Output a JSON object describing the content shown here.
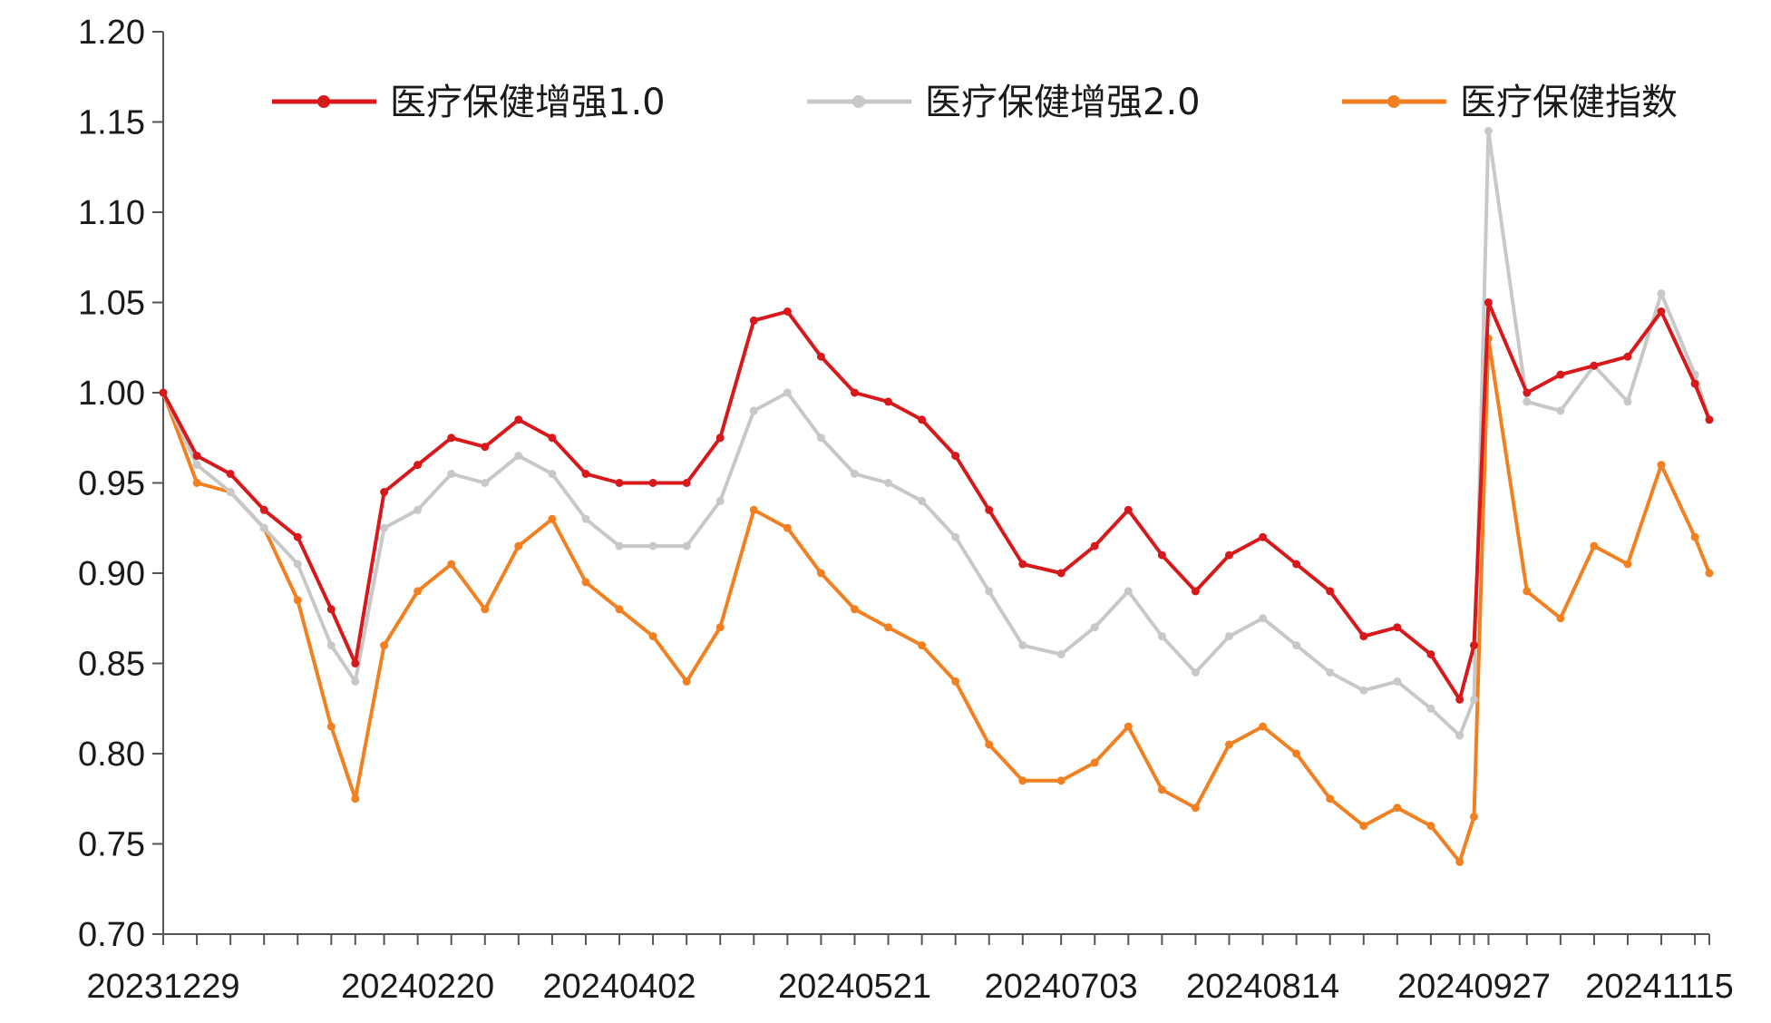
{
  "chart_data": {
    "type": "line",
    "title": "",
    "xlabel": "",
    "ylabel": "",
    "ylim": [
      0.7,
      1.2
    ],
    "y_ticks": [
      "1.20",
      "1.15",
      "1.10",
      "1.05",
      "1.00",
      "0.95",
      "0.90",
      "0.85",
      "0.80",
      "0.75",
      "0.70"
    ],
    "x_tick_labels": [
      "20231229",
      "20240220",
      "20240402",
      "20240521",
      "20240703",
      "20240814",
      "20240927",
      "20241115"
    ],
    "grid": false,
    "legend_position": "top",
    "x": [
      "20231229",
      "20240105",
      "20240112",
      "20240119",
      "20240126",
      "20240202",
      "20240207",
      "20240213",
      "20240220",
      "20240227",
      "20240305",
      "20240312",
      "20240319",
      "20240326",
      "20240402",
      "20240409",
      "20240416",
      "20240423",
      "20240430",
      "20240507",
      "20240514",
      "20240521",
      "20240528",
      "20240604",
      "20240611",
      "20240618",
      "20240625",
      "20240703",
      "20240710",
      "20240717",
      "20240724",
      "20240731",
      "20240807",
      "20240814",
      "20240821",
      "20240828",
      "20240904",
      "20240911",
      "20240918",
      "20240924",
      "20240927",
      "20240930",
      "20241008",
      "20241015",
      "20241022",
      "20241029",
      "20241105",
      "20241112",
      "20241115"
    ],
    "series": [
      {
        "name": "医疗保健增强1.0",
        "color": "#d7191c",
        "values": [
          1.0,
          0.965,
          0.955,
          0.935,
          0.92,
          0.88,
          0.85,
          0.945,
          0.96,
          0.975,
          0.97,
          0.985,
          0.975,
          0.955,
          0.95,
          0.95,
          0.95,
          0.975,
          1.04,
          1.045,
          1.02,
          1.0,
          0.995,
          0.985,
          0.965,
          0.935,
          0.905,
          0.9,
          0.915,
          0.935,
          0.91,
          0.89,
          0.91,
          0.92,
          0.905,
          0.89,
          0.865,
          0.87,
          0.855,
          0.83,
          0.86,
          1.05,
          1.0,
          1.01,
          1.015,
          1.02,
          1.045,
          1.005,
          0.985
        ]
      },
      {
        "name": "医疗保健增强2.0",
        "color": "#c8c8c8",
        "values": [
          1.0,
          0.96,
          0.945,
          0.925,
          0.905,
          0.86,
          0.84,
          0.925,
          0.935,
          0.955,
          0.95,
          0.965,
          0.955,
          0.93,
          0.915,
          0.915,
          0.915,
          0.94,
          0.99,
          1.0,
          0.975,
          0.955,
          0.95,
          0.94,
          0.92,
          0.89,
          0.86,
          0.855,
          0.87,
          0.89,
          0.865,
          0.845,
          0.865,
          0.875,
          0.86,
          0.845,
          0.835,
          0.84,
          0.825,
          0.81,
          0.83,
          1.145,
          0.995,
          0.99,
          1.015,
          0.995,
          1.055,
          1.01,
          0.985
        ]
      },
      {
        "name": "医疗保健指数",
        "color": "#f28020",
        "values": [
          1.0,
          0.95,
          0.945,
          0.925,
          0.885,
          0.815,
          0.775,
          0.86,
          0.89,
          0.905,
          0.88,
          0.915,
          0.93,
          0.895,
          0.88,
          0.865,
          0.84,
          0.87,
          0.935,
          0.925,
          0.9,
          0.88,
          0.87,
          0.86,
          0.84,
          0.805,
          0.785,
          0.785,
          0.795,
          0.815,
          0.78,
          0.77,
          0.805,
          0.815,
          0.8,
          0.775,
          0.76,
          0.77,
          0.76,
          0.74,
          0.765,
          1.03,
          0.89,
          0.875,
          0.915,
          0.905,
          0.96,
          0.92,
          0.9
        ]
      }
    ]
  }
}
